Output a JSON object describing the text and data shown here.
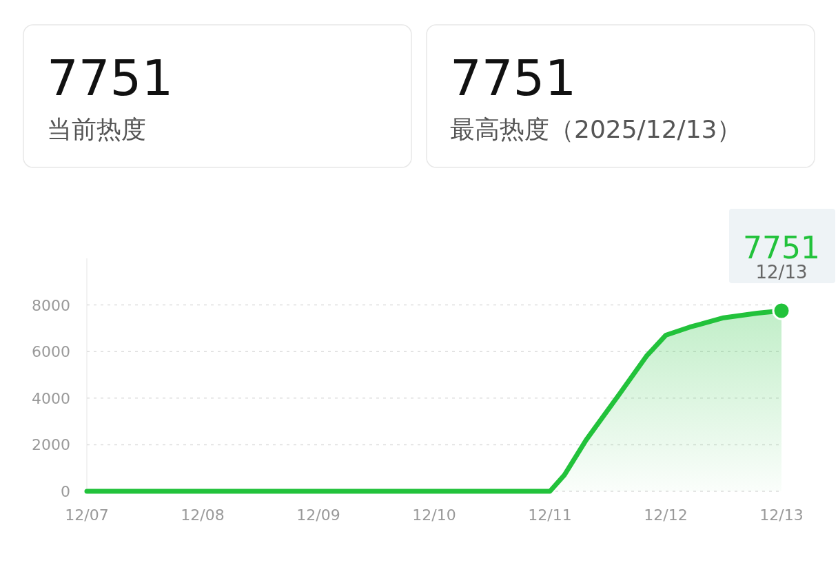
{
  "chart_data": [
    {
      "type": "other",
      "title": "7751",
      "subtitle": "当前热度"
    },
    {
      "type": "other",
      "title": "7751",
      "subtitle": "最高热度（2025/12/13）"
    },
    {
      "type": "area",
      "color": "#22c23b",
      "x": [
        "2025-12-07",
        "2025-12-08",
        "2025-12-09",
        "2025-12-10",
        "2025-12-11",
        "2025-12-11T03:00",
        "2025-12-11T07:30",
        "2025-12-11T14:30",
        "2025-12-11T20:00",
        "2025-12-12",
        "2025-12-12T05:00",
        "2025-12-12T12:00",
        "2025-12-12T19:00",
        "2025-12-13"
      ],
      "values": [
        0,
        0,
        0,
        0,
        0,
        700,
        2200,
        4200,
        5800,
        6700,
        7050,
        7450,
        7650,
        7751
      ],
      "xlim": [
        "2025-12-07",
        "2025-12-13"
      ],
      "xticks": [
        {
          "value": "2025-12-07",
          "label": "12/07"
        },
        {
          "value": "2025-12-08",
          "label": "12/08"
        },
        {
          "value": "2025-12-09",
          "label": "12/09"
        },
        {
          "value": "2025-12-10",
          "label": "12/10"
        },
        {
          "value": "2025-12-11",
          "label": "12/11"
        },
        {
          "value": "2025-12-12",
          "label": "12/12"
        },
        {
          "value": "2025-12-13",
          "label": "12/13"
        }
      ],
      "ylim": [
        0,
        10000
      ],
      "yticks": [
        0,
        2000,
        4000,
        6000,
        8000
      ],
      "grid": "y",
      "marker": "none",
      "annotations": [
        {
          "text": "7751",
          "x": "2025-12-13",
          "y": 7751
        },
        {
          "text": "12/13",
          "x": "2025-12-13",
          "y": 7751
        }
      ]
    }
  ]
}
